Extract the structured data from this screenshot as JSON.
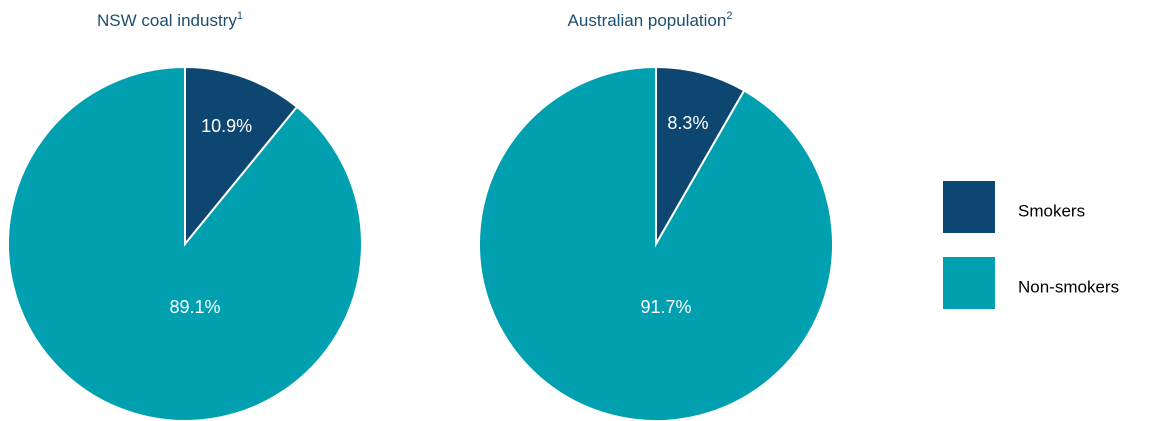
{
  "chart_data": [
    {
      "type": "pie",
      "title": "NSW coal industry",
      "title_superscript": "1",
      "categories": [
        "Smokers",
        "Non-smokers"
      ],
      "values": [
        10.9,
        89.1
      ],
      "value_labels": [
        "10.9%",
        "89.1%"
      ],
      "colors": [
        "#0d4670",
        "#00a0b0"
      ]
    },
    {
      "type": "pie",
      "title": "Australian population",
      "title_superscript": "2",
      "categories": [
        "Smokers",
        "Non-smokers"
      ],
      "values": [
        8.3,
        91.7
      ],
      "value_labels": [
        "8.3%",
        "91.7%"
      ],
      "colors": [
        "#0d4670",
        "#00a0b0"
      ]
    }
  ]
}
